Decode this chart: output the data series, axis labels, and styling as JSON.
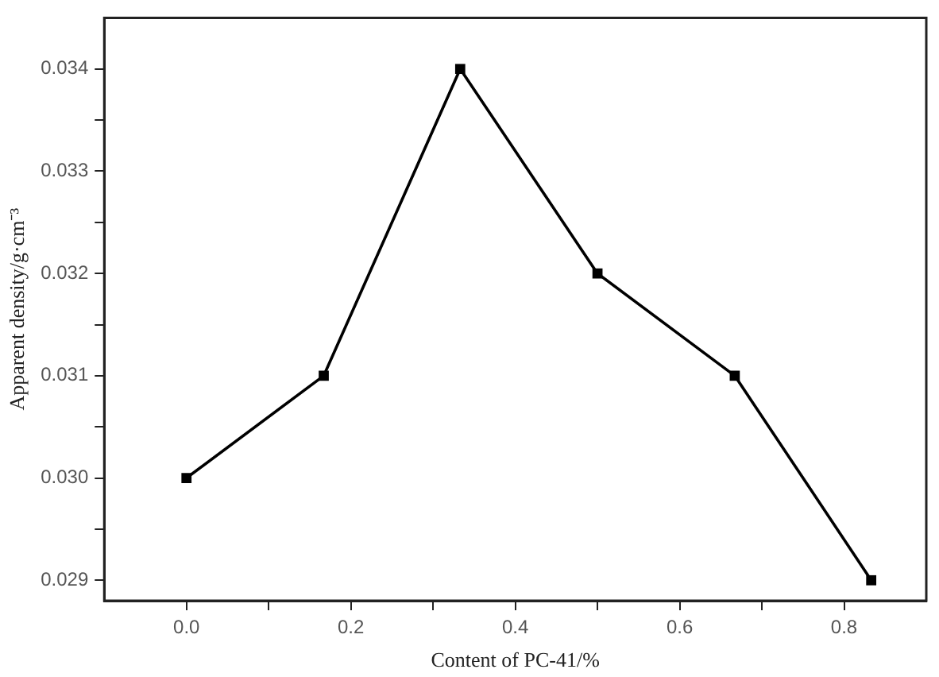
{
  "chart_data": {
    "type": "line",
    "xlabel": "Content of PC-41/%",
    "ylabel": "Apparent density/g·cm⁻³",
    "x": [
      0,
      0.167,
      0.333,
      0.5,
      0.667,
      0.833
    ],
    "series": [
      {
        "color": "#000000",
        "values": [
          0.03,
          0.031,
          0.034,
          0.032,
          0.031,
          0.029
        ]
      }
    ],
    "xlim": [
      -0.1,
      0.9
    ],
    "xticks": [
      {
        "value": 0.0,
        "label": "0.0"
      },
      {
        "value": 0.1,
        "label": null
      },
      {
        "value": 0.2,
        "label": "0.2"
      },
      {
        "value": 0.3,
        "label": null
      },
      {
        "value": 0.4,
        "label": "0.4"
      },
      {
        "value": 0.5,
        "label": null
      },
      {
        "value": 0.6,
        "label": "0.6"
      },
      {
        "value": 0.7,
        "label": null
      },
      {
        "value": 0.8,
        "label": "0.8"
      }
    ],
    "ylim": [
      0.0288,
      0.0345
    ],
    "yticks": [
      {
        "value": 0.029,
        "label": "0.029"
      },
      {
        "value": 0.0295,
        "label": null
      },
      {
        "value": 0.03,
        "label": "0.030"
      },
      {
        "value": 0.0305,
        "label": null
      },
      {
        "value": 0.031,
        "label": "0.031"
      },
      {
        "value": 0.0315,
        "label": null
      },
      {
        "value": 0.032,
        "label": "0.032"
      },
      {
        "value": 0.0325,
        "label": null
      },
      {
        "value": 0.033,
        "label": "0.033"
      },
      {
        "value": 0.0335,
        "label": null
      },
      {
        "value": 0.034,
        "label": "0.034"
      }
    ],
    "grid": false,
    "legend": false,
    "marker": "square",
    "line_style": "solid"
  }
}
